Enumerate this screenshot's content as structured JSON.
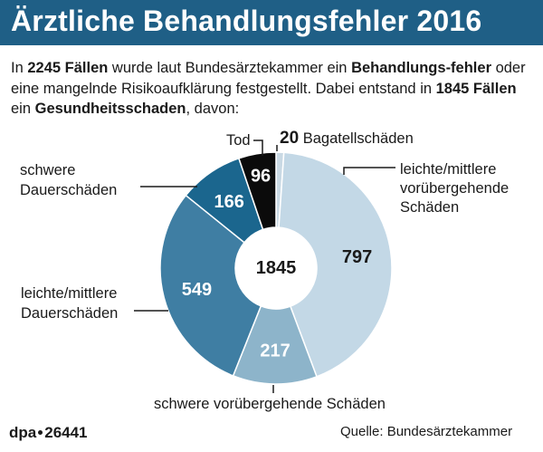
{
  "header": {
    "title": "Ärztliche Behandlungsfehler 2016"
  },
  "intro": {
    "p1": "In ",
    "b1": "2245 Fällen",
    "p2": " wurde laut Bundesärztekammer ein ",
    "b2": "Behandlungs-fehler",
    "p3": " oder eine mangelnde Risikoaufklärung festgestellt. Dabei entstand in ",
    "b3": "1845 Fällen",
    "p4": " ein ",
    "b4": "Gesundheitsschaden",
    "p5": ", davon:"
  },
  "chart_data": {
    "type": "pie",
    "center_total": "1845",
    "slices": [
      {
        "label": "Bagatellschäden",
        "value": 20,
        "value_label": "20",
        "color": "#c9d9e4"
      },
      {
        "label": "leichte/mittlere vorübergehende Schäden",
        "value": 797,
        "value_label": "797",
        "color": "#c3d8e6"
      },
      {
        "label": "schwere vorübergehende Schäden",
        "value": 217,
        "value_label": "217",
        "color": "#8db4ca"
      },
      {
        "label": "leichte/mittlere Dauerschäden",
        "value": 549,
        "value_label": "549",
        "color": "#3f7ea3"
      },
      {
        "label": "schwere Dauerschäden",
        "value": 166,
        "value_label": "166",
        "color": "#1b668e"
      },
      {
        "label": "Tod",
        "value": 96,
        "value_label": "96",
        "color": "#0b0b0b"
      }
    ]
  },
  "labels": {
    "bagatell": "Bagatellschäden",
    "leicht_vorueb_l1": "leichte/mittlere",
    "leicht_vorueb_l2": "vorübergehende",
    "leicht_vorueb_l3": "Schäden",
    "schwer_vorueb": "schwere vorübergehende Schäden",
    "leicht_dauer_l1": "leichte/mittlere",
    "leicht_dauer_l2": "Dauerschäden",
    "schwer_dauer_l1": "schwere",
    "schwer_dauer_l2": "Dauerschäden",
    "tod": "Tod"
  },
  "footer": {
    "agency": "dpa",
    "number": "26441",
    "source": "Quelle: Bundesärztekammer"
  }
}
